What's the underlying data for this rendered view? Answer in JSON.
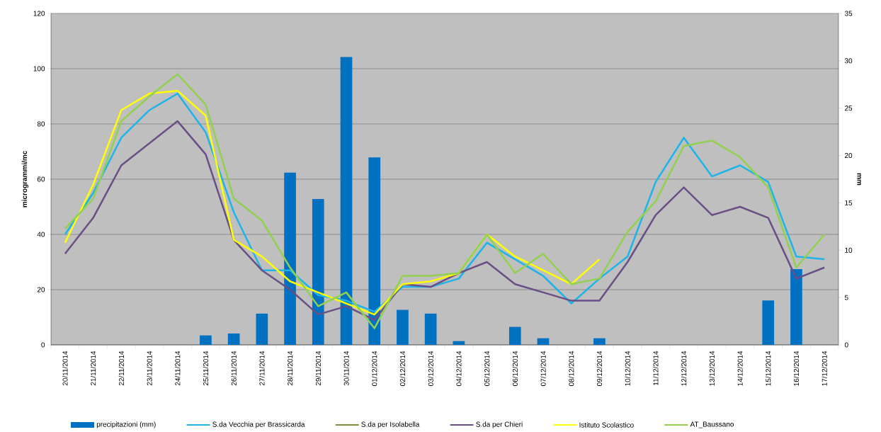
{
  "chart_data": {
    "type": "line",
    "categories": [
      "20/11/2014",
      "21/11/2014",
      "22/11/2014",
      "23/11/2014",
      "24/11/2014",
      "25/11/2014",
      "26/11/2014",
      "27/11/2014",
      "28/11/2014",
      "29/11/2014",
      "30/11/2014",
      "01/12/2014",
      "02/12/2014",
      "03/12/2014",
      "04/12/2014",
      "05/12/2014",
      "06/12/2014",
      "07/12/2014",
      "08/12/2014",
      "09/12/2014",
      "10/12/2014",
      "11/12/2014",
      "12/12/2014",
      "13/12/2014",
      "14/12/2014",
      "15/12/2014",
      "16/12/2014",
      "17/12/2014"
    ],
    "ylabel": "microgrammi/mc",
    "y2label": "mm",
    "ylim": [
      0,
      120
    ],
    "yticks": [
      0,
      20,
      40,
      60,
      80,
      100,
      120
    ],
    "y2lim": [
      0,
      35
    ],
    "y2ticks": [
      0,
      5,
      10,
      15,
      20,
      25,
      30,
      35
    ],
    "grid": "y",
    "legend": "bottom",
    "series": [
      {
        "name": "precipitazioni (mm)",
        "type": "bar",
        "axis": "y2",
        "color": "#0070c0",
        "values": [
          0,
          0,
          0,
          0,
          0,
          1.0,
          1.2,
          3.3,
          18.2,
          15.4,
          30.4,
          19.8,
          3.7,
          3.3,
          0.4,
          0,
          1.9,
          0.7,
          0,
          0.7,
          0,
          0,
          0,
          0,
          0,
          4.7,
          8.0,
          0
        ]
      },
      {
        "name": "S.da Vecchia per Brassicarda",
        "color": "#1fb4e8",
        "values": [
          40,
          55,
          75,
          85,
          91,
          77,
          48,
          27,
          27,
          18,
          16,
          12,
          21,
          21,
          24,
          37,
          31,
          25,
          15,
          24,
          32,
          59,
          75,
          61,
          65,
          59,
          32,
          31
        ]
      },
      {
        "name": "S.da per Isolabella",
        "color": "#77933c",
        "values": [
          null,
          null,
          null,
          null,
          null,
          null,
          null,
          null,
          null,
          null,
          null,
          null,
          null,
          null,
          null,
          null,
          null,
          null,
          null,
          null,
          null,
          null,
          null,
          null,
          null,
          null,
          null,
          null
        ]
      },
      {
        "name": "S.da per Chieri",
        "color": "#6a4f86",
        "values": [
          33,
          46,
          65,
          73,
          81,
          69,
          38,
          27,
          20,
          11,
          14,
          9,
          22,
          21,
          26,
          30,
          22,
          19,
          16,
          16,
          30,
          47,
          57,
          47,
          50,
          46,
          24,
          28
        ]
      },
      {
        "name": "Istituto Scolastico",
        "color": "#ffff00",
        "values": [
          37,
          58,
          85,
          91,
          92,
          83,
          38,
          32,
          23,
          19,
          15,
          11,
          22,
          23,
          26,
          40,
          32,
          27,
          22,
          31,
          null,
          null,
          null,
          null,
          null,
          null,
          null,
          null
        ]
      },
      {
        "name": "AT_Baussano",
        "color": "#92d050",
        "values": [
          42,
          53,
          81,
          90,
          98,
          87,
          53,
          45,
          28,
          14,
          19,
          6,
          25,
          25,
          26,
          40,
          26,
          33,
          22,
          24,
          41,
          52,
          72,
          74,
          68,
          57,
          28,
          40
        ]
      }
    ]
  }
}
